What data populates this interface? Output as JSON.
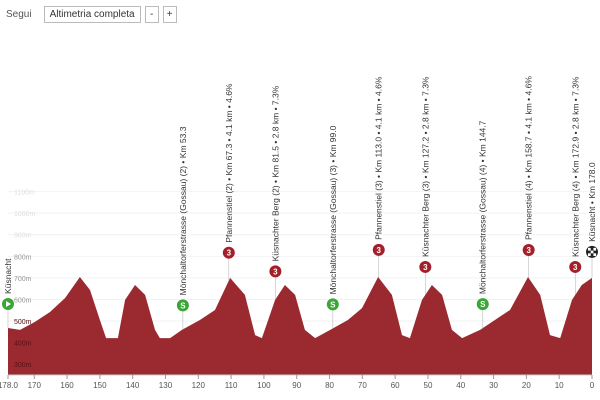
{
  "controls": {
    "follow": "Segui",
    "view": "Altimetria completa",
    "zoom_out": "-",
    "zoom_in": "+"
  },
  "chart_data": {
    "type": "area",
    "color": "#9a2a30",
    "x": [
      178,
      174.3,
      169.8,
      165.2,
      160.6,
      156.1,
      153,
      150,
      148.1,
      144.5,
      142.3,
      139.3,
      136.2,
      133.2,
      131.7,
      128.6,
      125,
      119.5,
      114.9,
      110.3,
      105.8,
      102.7,
      100.6,
      96.6,
      93.6,
      90.5,
      87.5,
      84.4,
      79.8,
      74.4,
      70.1,
      65.2,
      61,
      57.9,
      55.5,
      51.8,
      48.8,
      45.7,
      42.7,
      39.6,
      34.1,
      29.6,
      25,
      19.5,
      15.8,
      12.8,
      9.7,
      6.1,
      3.1,
      0
    ],
    "values": [
      468,
      459,
      496,
      542,
      607,
      704,
      644,
      505,
      421,
      421,
      598,
      667,
      621,
      459,
      421,
      421,
      459,
      505,
      551,
      700,
      621,
      435,
      421,
      598,
      667,
      621,
      459,
      421,
      459,
      505,
      560,
      704,
      621,
      435,
      421,
      598,
      667,
      621,
      459,
      421,
      459,
      505,
      551,
      704,
      621,
      435,
      421,
      598,
      667,
      700
    ],
    "xlim": [
      178,
      0
    ],
    "xticks": [
      {
        "value": 178,
        "label": "178.0"
      },
      170,
      160,
      150,
      140,
      130,
      120,
      110,
      100,
      90,
      80,
      70,
      60,
      50,
      40,
      30,
      20,
      10,
      0
    ],
    "ylim": [
      250,
      1200
    ],
    "yticks": [
      {
        "value": 300,
        "label": "300m"
      },
      {
        "value": 400,
        "label": "400m"
      },
      {
        "value": 500,
        "label": "500m"
      },
      {
        "value": 600,
        "label": "600m"
      },
      {
        "value": 700,
        "label": "700m"
      },
      {
        "value": 800,
        "label": "800m"
      },
      {
        "value": 900,
        "label": "900m"
      },
      {
        "value": 1000,
        "label": "1000m"
      },
      {
        "value": 1100,
        "label": "1100m"
      }
    ],
    "annotations": [
      {
        "km": 178,
        "label": "Küsnacht",
        "kind": "start"
      },
      {
        "km": 124.7,
        "label": "Mönchaltorferstrasse (Gossau) (2) • Km 53.3",
        "kind": "sprint",
        "icon": "S"
      },
      {
        "km": 110.7,
        "label": "Pfannenstiel (2) • Km 67.3 • 4.1 km • 4.6%",
        "kind": "climb",
        "icon": "3"
      },
      {
        "km": 96.5,
        "label": "Küsnachter Berg (2) • Km 81.5 • 2.8 km • 7.3%",
        "kind": "climb",
        "icon": "3"
      },
      {
        "km": 79,
        "label": "Mönchaltorferstrasse (Gossau) (3) • Km 99.0",
        "kind": "sprint",
        "icon": "S"
      },
      {
        "km": 65,
        "label": "Pfannenstiel (3) • Km 113.0 • 4.1 km • 4.6%",
        "kind": "climb",
        "icon": "3"
      },
      {
        "km": 50.8,
        "label": "Küsnachter Berg (3) • Km 127.2 • 2.8 km • 7.3%",
        "kind": "climb",
        "icon": "3"
      },
      {
        "km": 33.3,
        "label": "Mönchaltorferstrasse (Gossau) (4) • Km 144.7",
        "kind": "sprint",
        "icon": "S"
      },
      {
        "km": 19.3,
        "label": "Pfannenstiel (4) • Km 158.7 • 4.1 km • 4.6%",
        "kind": "climb",
        "icon": "3"
      },
      {
        "km": 5.1,
        "label": "Küsnachter Berg (4) • Km 172.9 • 2.8 km • 7.3%",
        "kind": "climb",
        "icon": "3"
      },
      {
        "km": 0,
        "label": "Küsnacht • Km 178.0",
        "kind": "finish"
      }
    ]
  }
}
